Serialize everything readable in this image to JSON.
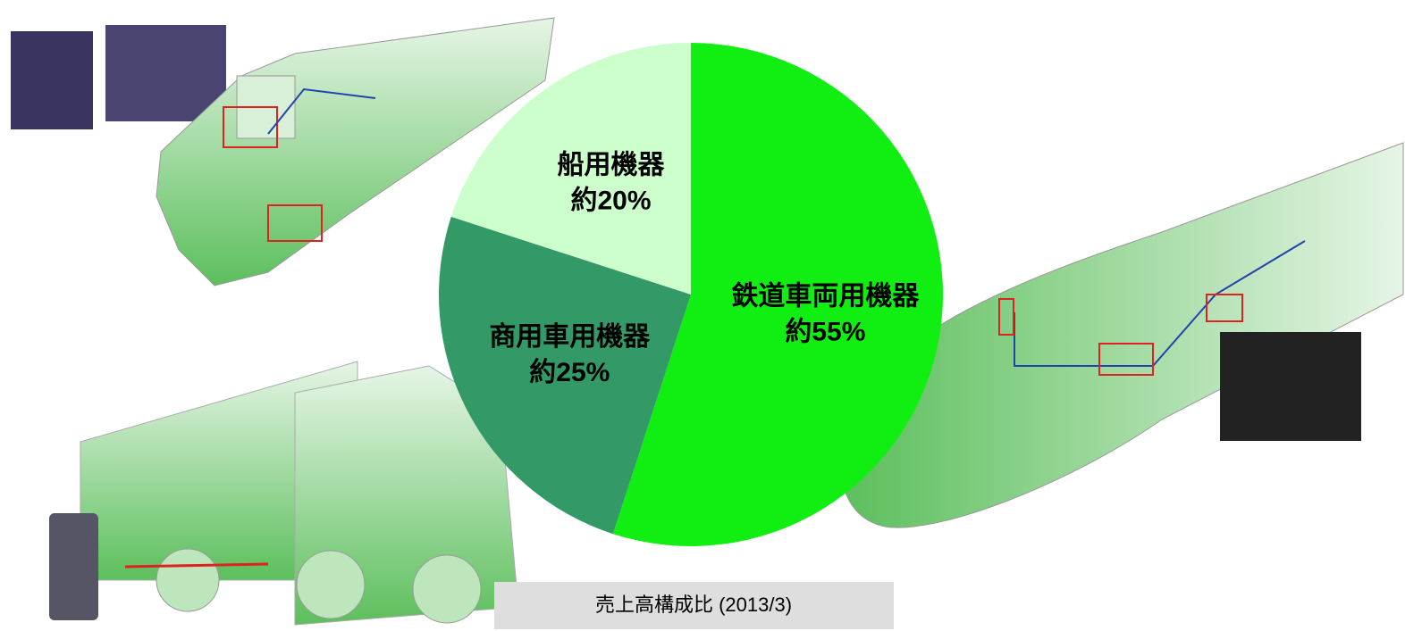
{
  "chart_data": {
    "type": "pie",
    "title": "売上高構成比 (2013/3)",
    "categories": [
      "鉄道車両用機器",
      "商用車用機器",
      "船用機器"
    ],
    "values": [
      55,
      25,
      20
    ],
    "value_labels": [
      "約55%",
      "約25%",
      "約20%"
    ],
    "colors": [
      "#11ee11",
      "#339966",
      "#ccffcc"
    ]
  }
}
